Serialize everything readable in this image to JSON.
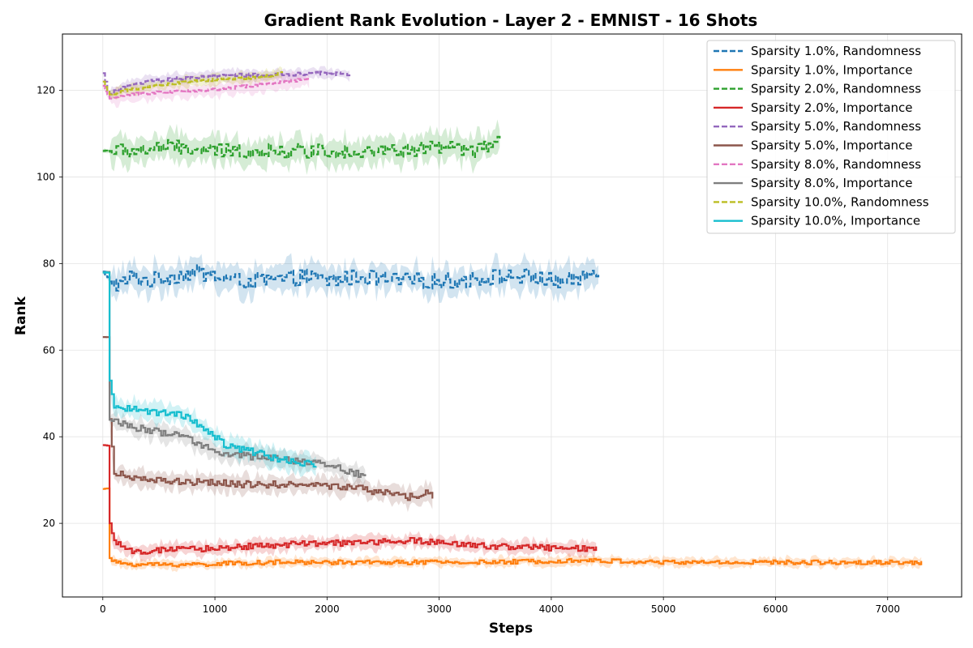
{
  "chart_data": {
    "type": "line",
    "title": "Gradient Rank Evolution - Layer 2 - EMNIST - 16 Shots",
    "xlabel": "Steps",
    "ylabel": "Rank",
    "xlim": [
      -360,
      7660
    ],
    "ylim": [
      3,
      133
    ],
    "xticks": [
      0,
      1000,
      2000,
      3000,
      4000,
      5000,
      6000,
      7000
    ],
    "yticks": [
      20,
      40,
      60,
      80,
      100,
      120
    ],
    "grid": true,
    "legend_position": "top-right",
    "series": [
      {
        "name": "Sparsity 1.0%, Randomness",
        "color": "#1f77b4",
        "dash": true,
        "points": [
          [
            0,
            78
          ],
          [
            60,
            76
          ],
          [
            150,
            75
          ],
          [
            250,
            77
          ],
          [
            400,
            76
          ],
          [
            600,
            77
          ],
          [
            800,
            78
          ],
          [
            1000,
            77
          ],
          [
            1200,
            76
          ],
          [
            1500,
            76
          ],
          [
            1800,
            77
          ],
          [
            2000,
            76
          ],
          [
            2300,
            77
          ],
          [
            2600,
            76
          ],
          [
            2900,
            76
          ],
          [
            3200,
            76
          ],
          [
            3500,
            77
          ],
          [
            3800,
            77
          ],
          [
            4000,
            76
          ],
          [
            4200,
            76
          ],
          [
            4420,
            79
          ]
        ],
        "start": 0,
        "end": 4420,
        "noise": 1.8,
        "band": 3.0
      },
      {
        "name": "Sparsity 1.0%, Importance",
        "color": "#ff7f0e",
        "dash": false,
        "points": [
          [
            0,
            28
          ],
          [
            50,
            28
          ],
          [
            60,
            12
          ],
          [
            100,
            11
          ],
          [
            300,
            10.5
          ],
          [
            800,
            10.5
          ],
          [
            1500,
            11
          ],
          [
            2500,
            11
          ],
          [
            3500,
            11
          ],
          [
            4200,
            11.5
          ],
          [
            5000,
            11
          ],
          [
            6000,
            11
          ],
          [
            7000,
            11
          ],
          [
            7300,
            11
          ]
        ],
        "start": 0,
        "end": 7300,
        "noise": 0.5,
        "band": 1.0
      },
      {
        "name": "Sparsity 2.0%, Randomness",
        "color": "#2ca02c",
        "dash": true,
        "points": [
          [
            0,
            106
          ],
          [
            300,
            106
          ],
          [
            600,
            107
          ],
          [
            900,
            106
          ],
          [
            1200,
            106
          ],
          [
            1500,
            106
          ],
          [
            1800,
            106
          ],
          [
            2100,
            106
          ],
          [
            2400,
            106
          ],
          [
            2700,
            106
          ],
          [
            3000,
            107
          ],
          [
            3300,
            106
          ],
          [
            3550,
            108
          ]
        ],
        "start": 0,
        "end": 3550,
        "noise": 1.6,
        "band": 3.0
      },
      {
        "name": "Sparsity 2.0%, Importance",
        "color": "#d62728",
        "dash": false,
        "points": [
          [
            0,
            38
          ],
          [
            40,
            38
          ],
          [
            60,
            20
          ],
          [
            100,
            16
          ],
          [
            200,
            13.5
          ],
          [
            800,
            14
          ],
          [
            1500,
            15
          ],
          [
            2200,
            15.5
          ],
          [
            2800,
            16
          ],
          [
            3200,
            15
          ],
          [
            3800,
            14.5
          ],
          [
            4400,
            14
          ]
        ],
        "start": 0,
        "end": 4400,
        "noise": 0.7,
        "band": 1.5
      },
      {
        "name": "Sparsity 5.0%, Randomness",
        "color": "#9467bd",
        "dash": true,
        "points": [
          [
            0,
            124
          ],
          [
            50,
            119
          ],
          [
            150,
            120.5
          ],
          [
            400,
            122
          ],
          [
            800,
            123
          ],
          [
            1200,
            123.5
          ],
          [
            1600,
            123.5
          ],
          [
            2000,
            124
          ],
          [
            2200,
            123.5
          ]
        ],
        "start": 0,
        "end": 2200,
        "noise": 0.4,
        "band": 1.2
      },
      {
        "name": "Sparsity 5.0%, Importance",
        "color": "#8c564b",
        "dash": false,
        "points": [
          [
            0,
            63
          ],
          [
            40,
            63
          ],
          [
            60,
            44
          ],
          [
            100,
            32
          ],
          [
            300,
            30
          ],
          [
            800,
            29.5
          ],
          [
            1300,
            29
          ],
          [
            1800,
            29
          ],
          [
            2300,
            28
          ],
          [
            2700,
            26
          ],
          [
            2900,
            27
          ],
          [
            2940,
            26
          ]
        ],
        "start": 0,
        "end": 2940,
        "noise": 0.8,
        "band": 2.0
      },
      {
        "name": "Sparsity 8.0%, Randomness",
        "color": "#e377c2",
        "dash": true,
        "points": [
          [
            0,
            121
          ],
          [
            50,
            118
          ],
          [
            200,
            119
          ],
          [
            500,
            119.5
          ],
          [
            900,
            120
          ],
          [
            1300,
            121
          ],
          [
            1800,
            122.5
          ],
          [
            1850,
            122.5
          ]
        ],
        "start": 0,
        "end": 1850,
        "noise": 0.3,
        "band": 1.8
      },
      {
        "name": "Sparsity 8.0%, Importance",
        "color": "#7f7f7f",
        "dash": false,
        "points": [
          [
            0,
            78
          ],
          [
            40,
            78
          ],
          [
            60,
            44
          ],
          [
            300,
            42
          ],
          [
            700,
            40
          ],
          [
            1100,
            36
          ],
          [
            1500,
            35
          ],
          [
            1900,
            34
          ],
          [
            2200,
            32
          ],
          [
            2350,
            31
          ]
        ],
        "start": 0,
        "end": 2350,
        "noise": 0.8,
        "band": 2.0
      },
      {
        "name": "Sparsity 10.0%, Randomness",
        "color": "#bcbd22",
        "dash": true,
        "points": [
          [
            0,
            122
          ],
          [
            50,
            119
          ],
          [
            200,
            120
          ],
          [
            600,
            121.5
          ],
          [
            1000,
            122.5
          ],
          [
            1400,
            123
          ],
          [
            1600,
            124
          ]
        ],
        "start": 0,
        "end": 1600,
        "noise": 0.3,
        "band": 1.2
      },
      {
        "name": "Sparsity 10.0%, Importance",
        "color": "#17becf",
        "dash": false,
        "points": [
          [
            0,
            78
          ],
          [
            40,
            78
          ],
          [
            60,
            53
          ],
          [
            100,
            47
          ],
          [
            400,
            46
          ],
          [
            700,
            45
          ],
          [
            900,
            42
          ],
          [
            1100,
            38
          ],
          [
            1400,
            36
          ],
          [
            1700,
            34
          ],
          [
            1900,
            33.5
          ]
        ],
        "start": 0,
        "end": 1900,
        "noise": 0.8,
        "band": 2.2
      }
    ]
  }
}
